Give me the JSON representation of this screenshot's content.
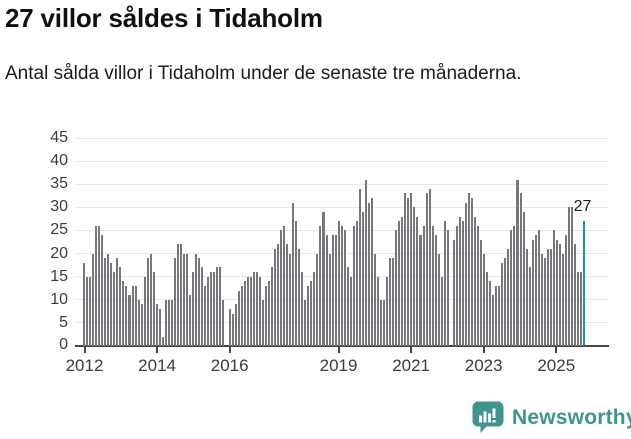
{
  "header": {
    "title": "27 villor såldes i Tidaholm",
    "subtitle": "Antal sålda villor i Tidaholm under de senaste tre månaderna."
  },
  "footer": {
    "brand": "Newsworthy",
    "logo_icon": "speech-bubble-bar-chart-icon"
  },
  "colors": {
    "bar": "#76767b",
    "highlight_bar": "#109e95",
    "logo_teal": "#3f948e",
    "axis": "#474747",
    "gridline": "#e7e7e7",
    "tick_text": "#3c3c3c"
  },
  "chart_data": {
    "type": "bar",
    "title": "27 villor såldes i Tidaholm",
    "subtitle": "Antal sålda villor i Tidaholm under de senaste tre månaderna.",
    "ylim": [
      0,
      45
    ],
    "y_ticks": [
      0,
      5,
      10,
      15,
      20,
      25,
      30,
      35,
      40,
      45
    ],
    "x_tick_labels": [
      "2012",
      "2014",
      "2016",
      "2019",
      "2021",
      "2023",
      "2025"
    ],
    "x_start_year": 2012,
    "bars_per_year": 12,
    "grid": true,
    "legend": false,
    "annotation": "27",
    "highlight_last_bar": true,
    "values": [
      18,
      15,
      15,
      20,
      26,
      26,
      24,
      19,
      20,
      18,
      16,
      19,
      17,
      14,
      13,
      11,
      13,
      13,
      10,
      9,
      15,
      19,
      20,
      16,
      9,
      8,
      2,
      10,
      10,
      10,
      19,
      22,
      22,
      20,
      20,
      11,
      16,
      20,
      19,
      17,
      13,
      15,
      16,
      16,
      17,
      17,
      10,
      0,
      8,
      7,
      9,
      12,
      13,
      14,
      15,
      15,
      16,
      16,
      15,
      10,
      13,
      14,
      17,
      21,
      22,
      25,
      26,
      22,
      20,
      31,
      27,
      21,
      16,
      10,
      13,
      14,
      16,
      20,
      26,
      29,
      24,
      20,
      24,
      24,
      27,
      26,
      25,
      17,
      15,
      26,
      27,
      34,
      29,
      36,
      31,
      32,
      20,
      15,
      10,
      10,
      15,
      19,
      19,
      25,
      27,
      28,
      33,
      32,
      33,
      30,
      28,
      24,
      26,
      33,
      34,
      26,
      24,
      20,
      15,
      27,
      25,
      0,
      23,
      26,
      28,
      27,
      31,
      33,
      32,
      28,
      26,
      23,
      20,
      16,
      14,
      11,
      13,
      13,
      18,
      19,
      21,
      25,
      26,
      36,
      33,
      29,
      21,
      17,
      23,
      24,
      25,
      20,
      19,
      21,
      21,
      25,
      23,
      22,
      20,
      24,
      30,
      30,
      22,
      16,
      16,
      27
    ]
  }
}
